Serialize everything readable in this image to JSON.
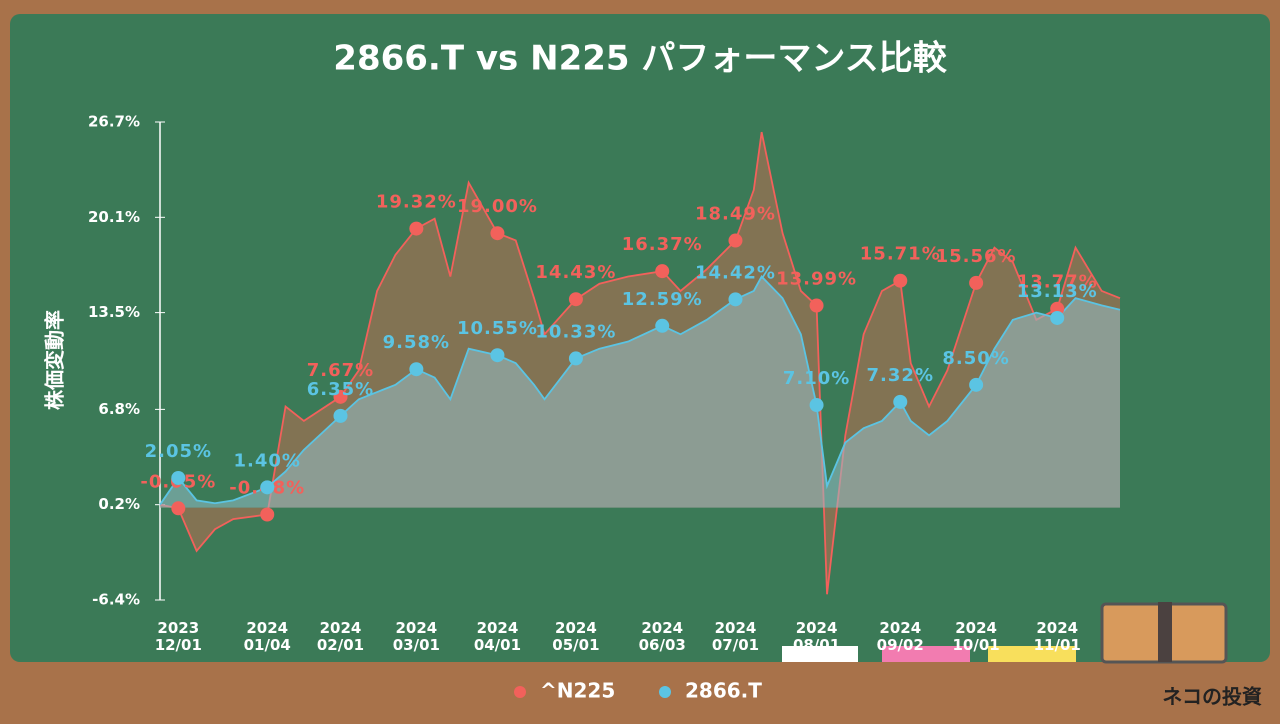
{
  "chart_data": {
    "type": "line",
    "title": "2866.T vs N225 パフォーマンス比較",
    "ylabel": "株価変動率",
    "watermark": "ネコの投資",
    "legend": "bottom",
    "xlim": [
      "2023-11-24",
      "2024-11-25"
    ],
    "ylim": [
      -6.4,
      26.7
    ],
    "yticks": [
      {
        "value": -6.4,
        "label": "-6.4%"
      },
      {
        "value": 0.2,
        "label": "0.2%"
      },
      {
        "value": 6.8,
        "label": "6.8%"
      },
      {
        "value": 13.5,
        "label": "13.5%"
      },
      {
        "value": 20.1,
        "label": "20.1%"
      },
      {
        "value": 26.7,
        "label": "26.7%"
      }
    ],
    "xticks": [
      {
        "value": "2023-12-01",
        "label": "2023\n12/01"
      },
      {
        "value": "2024-01-04",
        "label": "2024\n01/04"
      },
      {
        "value": "2024-02-01",
        "label": "2024\n02/01"
      },
      {
        "value": "2024-03-01",
        "label": "2024\n03/01"
      },
      {
        "value": "2024-04-01",
        "label": "2024\n04/01"
      },
      {
        "value": "2024-05-01",
        "label": "2024\n05/01"
      },
      {
        "value": "2024-06-03",
        "label": "2024\n06/03"
      },
      {
        "value": "2024-07-01",
        "label": "2024\n07/01"
      },
      {
        "value": "2024-08-01",
        "label": "2024\n08/01"
      },
      {
        "value": "2024-09-02",
        "label": "2024\n09/02"
      },
      {
        "value": "2024-10-01",
        "label": "2024\n10/01"
      },
      {
        "value": "2024-11-01",
        "label": "2024\n11/01"
      }
    ],
    "x": [
      "2023-11-24",
      "2023-12-01",
      "2023-12-08",
      "2023-12-15",
      "2023-12-22",
      "2024-01-04",
      "2024-01-11",
      "2024-01-18",
      "2024-02-01",
      "2024-02-08",
      "2024-02-15",
      "2024-02-22",
      "2024-03-01",
      "2024-03-08",
      "2024-03-14",
      "2024-03-21",
      "2024-04-01",
      "2024-04-08",
      "2024-04-15",
      "2024-04-19",
      "2024-05-01",
      "2024-05-10",
      "2024-05-21",
      "2024-06-03",
      "2024-06-10",
      "2024-06-20",
      "2024-07-01",
      "2024-07-08",
      "2024-07-11",
      "2024-07-19",
      "2024-07-26",
      "2024-08-01",
      "2024-08-05",
      "2024-08-12",
      "2024-08-19",
      "2024-08-26",
      "2024-09-02",
      "2024-09-06",
      "2024-09-13",
      "2024-09-20",
      "2024-10-01",
      "2024-10-08",
      "2024-10-15",
      "2024-10-24",
      "2024-11-01",
      "2024-11-08",
      "2024-11-18",
      "2024-11-25"
    ],
    "series": [
      {
        "name": "^N225",
        "color": "#f2615b",
        "values": [
          0.2,
          -0.05,
          -3.0,
          -1.5,
          -0.8,
          -0.48,
          7.0,
          6.0,
          7.67,
          9.5,
          15.0,
          17.5,
          19.32,
          20.0,
          16.0,
          22.5,
          19.0,
          18.5,
          14.5,
          12.0,
          14.43,
          15.5,
          16.0,
          16.37,
          15.0,
          16.5,
          18.49,
          22.0,
          26.0,
          19.0,
          15.0,
          13.99,
          -6.0,
          5.0,
          12.0,
          15.0,
          15.71,
          10.0,
          7.0,
          9.5,
          15.56,
          18.0,
          17.0,
          13.0,
          13.77,
          18.0,
          15.0,
          14.5
        ],
        "markers": {
          "x": [
            "2023-12-01",
            "2024-01-04",
            "2024-02-01",
            "2024-03-01",
            "2024-04-01",
            "2024-05-01",
            "2024-06-03",
            "2024-07-01",
            "2024-08-01",
            "2024-09-02",
            "2024-10-01",
            "2024-11-01"
          ],
          "values": [
            -0.05,
            -0.48,
            7.67,
            19.32,
            19.0,
            14.43,
            16.37,
            18.49,
            13.99,
            15.71,
            15.56,
            13.77
          ],
          "value_labels": [
            "-0.05%",
            "-0.48%",
            "7.67%",
            "19.32%",
            "19.00%",
            "14.43%",
            "16.37%",
            "18.49%",
            "13.99%",
            "15.71%",
            "15.56%",
            "13.77%"
          ]
        }
      },
      {
        "name": "2866.T",
        "color": "#5bc4e3",
        "values": [
          0.2,
          2.05,
          0.5,
          0.3,
          0.5,
          1.4,
          2.5,
          4.0,
          6.35,
          7.5,
          8.0,
          8.5,
          9.58,
          9.0,
          7.5,
          11.0,
          10.55,
          10.0,
          8.5,
          7.5,
          10.33,
          11.0,
          11.5,
          12.59,
          12.0,
          13.0,
          14.42,
          15.0,
          16.0,
          14.5,
          12.0,
          7.1,
          1.5,
          4.5,
          5.5,
          6.0,
          7.32,
          6.0,
          5.0,
          6.0,
          8.5,
          11.0,
          13.0,
          13.5,
          13.13,
          14.5,
          14.0,
          13.7
        ],
        "markers": {
          "x": [
            "2023-12-01",
            "2024-01-04",
            "2024-02-01",
            "2024-03-01",
            "2024-04-01",
            "2024-05-01",
            "2024-06-03",
            "2024-07-01",
            "2024-08-01",
            "2024-09-02",
            "2024-10-01",
            "2024-11-01"
          ],
          "values": [
            2.05,
            1.4,
            6.35,
            9.58,
            10.55,
            10.33,
            12.59,
            14.42,
            7.1,
            7.32,
            8.5,
            13.13
          ],
          "value_labels": [
            "2.05%",
            "1.40%",
            "6.35%",
            "9.58%",
            "10.55%",
            "10.33%",
            "12.59%",
            "14.42%",
            "7.10%",
            "7.32%",
            "8.50%",
            "13.13%"
          ]
        }
      }
    ]
  }
}
